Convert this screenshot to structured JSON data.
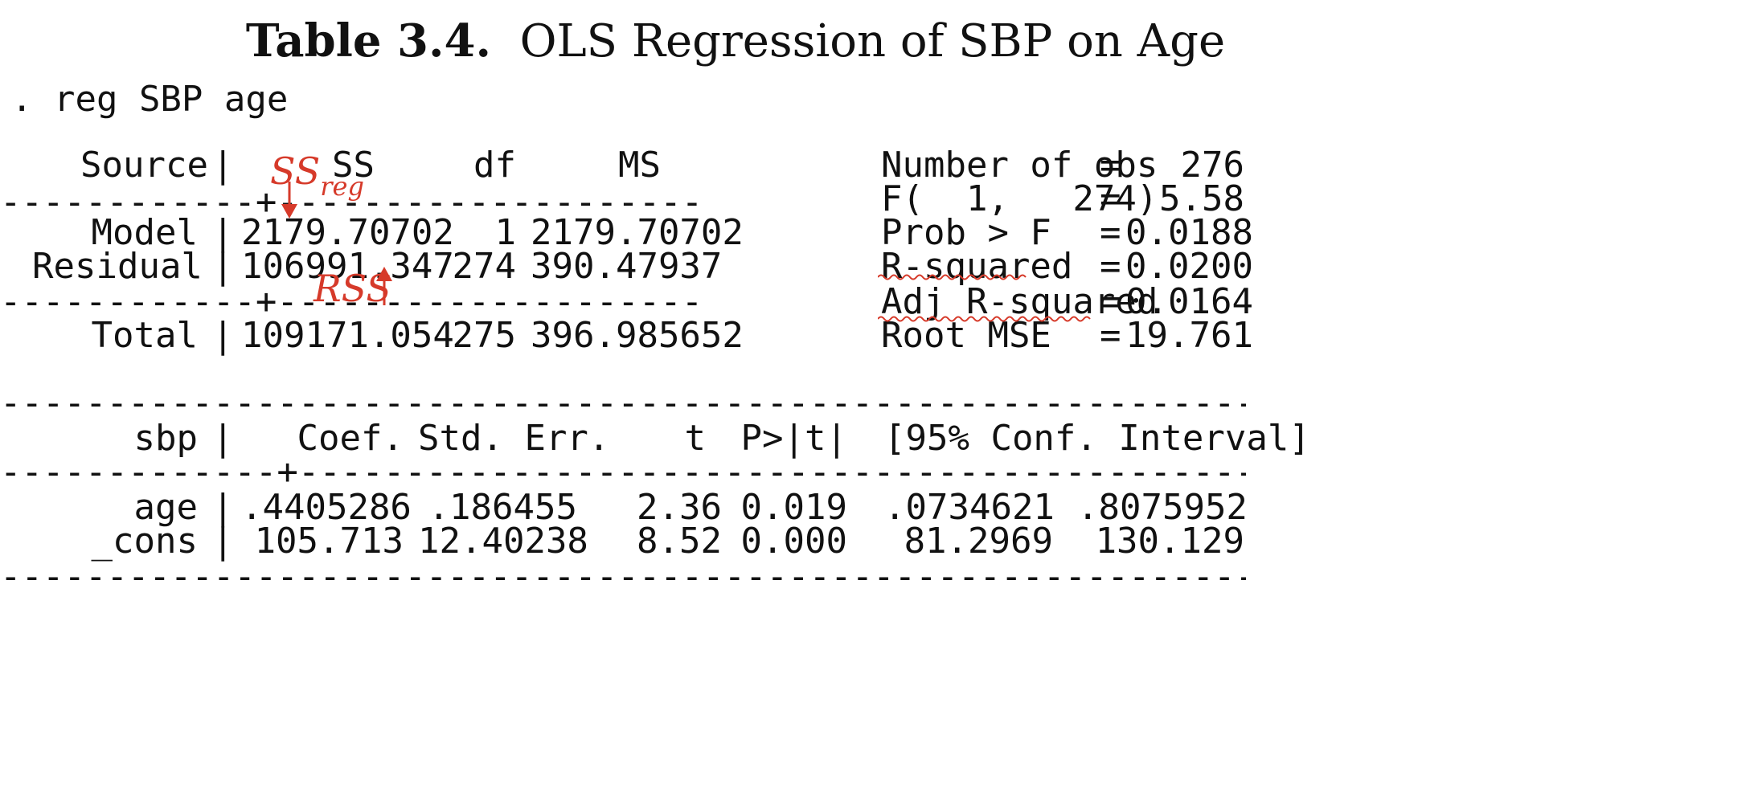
{
  "title": {
    "bold": "Table 3.4.",
    "rest": "OLS Regression of SBP on Age"
  },
  "command": ". reg SBP age",
  "anova": {
    "headers": {
      "source": "Source",
      "ss": "SS",
      "df": "df",
      "ms": "MS"
    },
    "rows": [
      {
        "source": "Model",
        "ss": "2179.70702",
        "df": "1",
        "ms": "2179.70702"
      },
      {
        "source": "Residual",
        "ss": "106991.347",
        "df": "274",
        "ms": "390.47937"
      },
      {
        "source": "Total",
        "ss": "109171.054",
        "df": "275",
        "ms": "396.985652"
      }
    ]
  },
  "stats": [
    {
      "label": "Number of obs",
      "eq": "=",
      "value": "276"
    },
    {
      "label": "F(  1,   274)",
      "eq": "=",
      "value": "5.58"
    },
    {
      "label": "Prob > F",
      "eq": "=",
      "value": "0.0188"
    },
    {
      "label": "R-squared",
      "eq": "=",
      "value": "0.0200"
    },
    {
      "label": "Adj R-squared",
      "eq": "=",
      "value": "0.0164"
    },
    {
      "label": "Root MSE",
      "eq": "=",
      "value": "19.761"
    }
  ],
  "coef_table": {
    "headers": {
      "var": "sbp",
      "coef": "Coef.",
      "se": "Std. Err.",
      "t": "t",
      "p": "P>|t|",
      "ci": "[95% Conf. Interval]"
    },
    "rows": [
      {
        "var": "age",
        "coef": ".4405286",
        "se": ".186455",
        "t": "2.36",
        "p": "0.019",
        "ci_low": ".0734621",
        "ci_high": ".8075952"
      },
      {
        "var": "_cons",
        "coef": "105.713",
        "se": "12.40238",
        "t": "8.52",
        "p": "0.000",
        "ci_low": "81.2969",
        "ci_high": "130.129"
      }
    ]
  },
  "annotations": {
    "ss_reg": {
      "main": "SS",
      "sub": "reg"
    },
    "rss": "RSS",
    "color": "#d63a2a"
  }
}
